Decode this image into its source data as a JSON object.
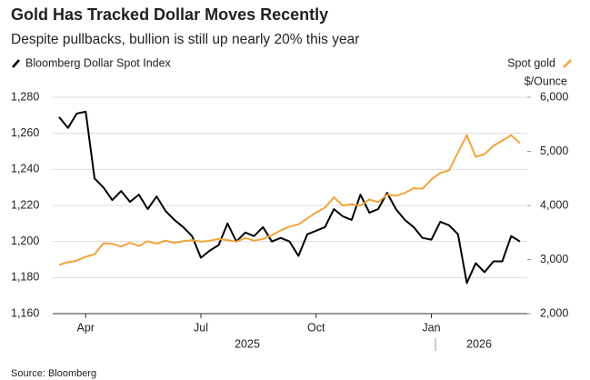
{
  "chart_data": {
    "type": "line",
    "title": "Gold Has Tracked Dollar Moves Recently",
    "subtitle": "Despite pullbacks, bullion is still up nearly 20% this year",
    "y2_label": "$/Ounce",
    "source": "Source: Bloomberg",
    "year_labels": [
      "2025",
      "2026"
    ],
    "categories": [
      null,
      null,
      null,
      "Apr",
      null,
      null,
      null,
      null,
      null,
      null,
      null,
      null,
      null,
      null,
      null,
      null,
      "Jul",
      null,
      null,
      null,
      null,
      null,
      null,
      null,
      null,
      null,
      null,
      null,
      null,
      "Oct",
      null,
      null,
      null,
      null,
      null,
      null,
      null,
      null,
      null,
      null,
      null,
      null,
      "Jan",
      null,
      null,
      null,
      null,
      null,
      null,
      null,
      null,
      null,
      null
    ],
    "series": [
      {
        "name": "Bloomberg Dollar Spot Index",
        "color": "#000000",
        "axis": "y",
        "values": [
          1269,
          1263,
          1271,
          1272,
          1235,
          1230,
          1223,
          1228,
          1222,
          1226,
          1218,
          1225,
          1217,
          1212,
          1208,
          1203,
          1191,
          1195,
          1198,
          1210,
          1200,
          1205,
          1203,
          1208,
          1200,
          1202,
          1200,
          1192,
          1204,
          1206,
          1208,
          1218,
          1214,
          1212,
          1226,
          1216,
          1218,
          1227,
          1218,
          1212,
          1208,
          1202,
          1201,
          1211,
          1209,
          1204,
          1177,
          1188,
          1183,
          1189,
          1189,
          1203,
          1200
        ]
      },
      {
        "name": "Spot gold",
        "color": "#f2a43a",
        "axis": "y2",
        "values": [
          2900,
          2950,
          2980,
          3050,
          3100,
          3300,
          3290,
          3240,
          3310,
          3250,
          3340,
          3290,
          3350,
          3310,
          3340,
          3360,
          3330,
          3350,
          3380,
          3360,
          3330,
          3400,
          3350,
          3380,
          3450,
          3540,
          3610,
          3650,
          3760,
          3870,
          3960,
          4150,
          4000,
          4020,
          4000,
          4110,
          4060,
          4200,
          4180,
          4230,
          4320,
          4310,
          4480,
          4600,
          4650,
          4980,
          5300,
          4900,
          4950,
          5100,
          5200,
          5300,
          5150
        ]
      }
    ],
    "ylim": [
      1160,
      1280
    ],
    "yticks": [
      {
        "value": 1160,
        "label": "1,160"
      },
      {
        "value": 1180,
        "label": "1,180"
      },
      {
        "value": 1200,
        "label": "1,200"
      },
      {
        "value": 1220,
        "label": "1,220"
      },
      {
        "value": 1240,
        "label": "1,240"
      },
      {
        "value": 1260,
        "label": "1,260"
      },
      {
        "value": 1280,
        "label": "1,280"
      }
    ],
    "y2lim": [
      2000,
      6000
    ],
    "y2ticks": [
      {
        "value": 2000,
        "label": "2,000"
      },
      {
        "value": 3000,
        "label": "3,000"
      },
      {
        "value": 4000,
        "label": "4,000"
      },
      {
        "value": 5000,
        "label": "5,000"
      },
      {
        "value": 6000,
        "label": "6,000"
      }
    ],
    "grid": true
  }
}
